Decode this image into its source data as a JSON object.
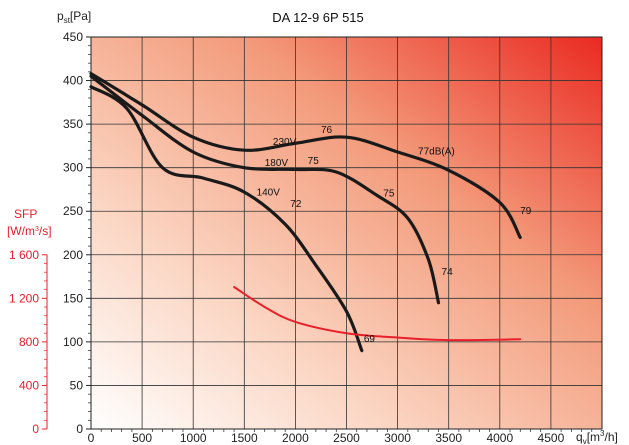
{
  "chart_data": {
    "type": "line",
    "title": "DA 12-9 6P 515",
    "y_axis_label": "p",
    "y_axis_label_sub": "st",
    "y_axis_label_unit": "[Pa]",
    "x_axis_label": "q",
    "x_axis_label_sub": "v",
    "x_axis_label_unit": "[m",
    "x_axis_label_sup": "3",
    "x_axis_label_tail": "/h]",
    "xlim": [
      0,
      5000
    ],
    "ylim": [
      0,
      450
    ],
    "x_ticks": [
      "0",
      "500",
      "1000",
      "1500",
      "2000",
      "2500",
      "3000",
      "3500",
      "4000",
      "4500"
    ],
    "y_ticks": [
      "0",
      "50",
      "100",
      "150",
      "200",
      "250",
      "300",
      "350",
      "400",
      "450"
    ],
    "grid": true,
    "secondary_axis": {
      "label_line1": "SFP",
      "label_line2": "[W/m",
      "label_sup": "3",
      "label_tail": "/s]",
      "ticks": [
        {
          "label": "0",
          "pa": 0
        },
        {
          "label": "400",
          "pa": 50
        },
        {
          "label": "800",
          "pa": 100
        },
        {
          "label": "1 200",
          "pa": 150
        },
        {
          "label": "1 600",
          "pa": 200
        }
      ]
    },
    "series": [
      {
        "name": "230V",
        "color": "#1a1a1a",
        "points": [
          [
            0,
            408
          ],
          [
            500,
            372
          ],
          [
            1000,
            335
          ],
          [
            1500,
            320
          ],
          [
            2000,
            328
          ],
          [
            2500,
            335
          ],
          [
            3000,
            318
          ],
          [
            3500,
            297
          ],
          [
            4000,
            260
          ],
          [
            4200,
            220
          ]
        ]
      },
      {
        "name": "180V",
        "color": "#1a1a1a",
        "points": [
          [
            0,
            405
          ],
          [
            500,
            360
          ],
          [
            1000,
            318
          ],
          [
            1500,
            300
          ],
          [
            2000,
            298
          ],
          [
            2400,
            295
          ],
          [
            2800,
            268
          ],
          [
            3100,
            242
          ],
          [
            3300,
            195
          ],
          [
            3400,
            145
          ]
        ]
      },
      {
        "name": "140V",
        "color": "#1a1a1a",
        "points": [
          [
            0,
            393
          ],
          [
            350,
            368
          ],
          [
            700,
            300
          ],
          [
            1100,
            288
          ],
          [
            1500,
            272
          ],
          [
            1900,
            235
          ],
          [
            2200,
            188
          ],
          [
            2500,
            135
          ],
          [
            2650,
            90
          ]
        ]
      },
      {
        "name": "SFP",
        "color": "#e8202a",
        "points": [
          [
            1400,
            163
          ],
          [
            1700,
            140
          ],
          [
            2000,
            123
          ],
          [
            2500,
            110
          ],
          [
            3000,
            105
          ],
          [
            3500,
            102
          ],
          [
            4200,
            103
          ]
        ]
      }
    ],
    "annotations": [
      {
        "text": "230V",
        "x": 1780,
        "y": 326
      },
      {
        "text": "76",
        "x": 2250,
        "y": 340
      },
      {
        "text": "77dB(A)",
        "x": 3200,
        "y": 315
      },
      {
        "text": "79",
        "x": 4200,
        "y": 247
      },
      {
        "text": "180V",
        "x": 1700,
        "y": 302
      },
      {
        "text": "75",
        "x": 2120,
        "y": 304
      },
      {
        "text": "75",
        "x": 2860,
        "y": 267
      },
      {
        "text": "74",
        "x": 3430,
        "y": 177
      },
      {
        "text": "140V",
        "x": 1620,
        "y": 268
      },
      {
        "text": "72",
        "x": 1950,
        "y": 255
      },
      {
        "text": "69",
        "x": 2670,
        "y": 100
      }
    ]
  }
}
